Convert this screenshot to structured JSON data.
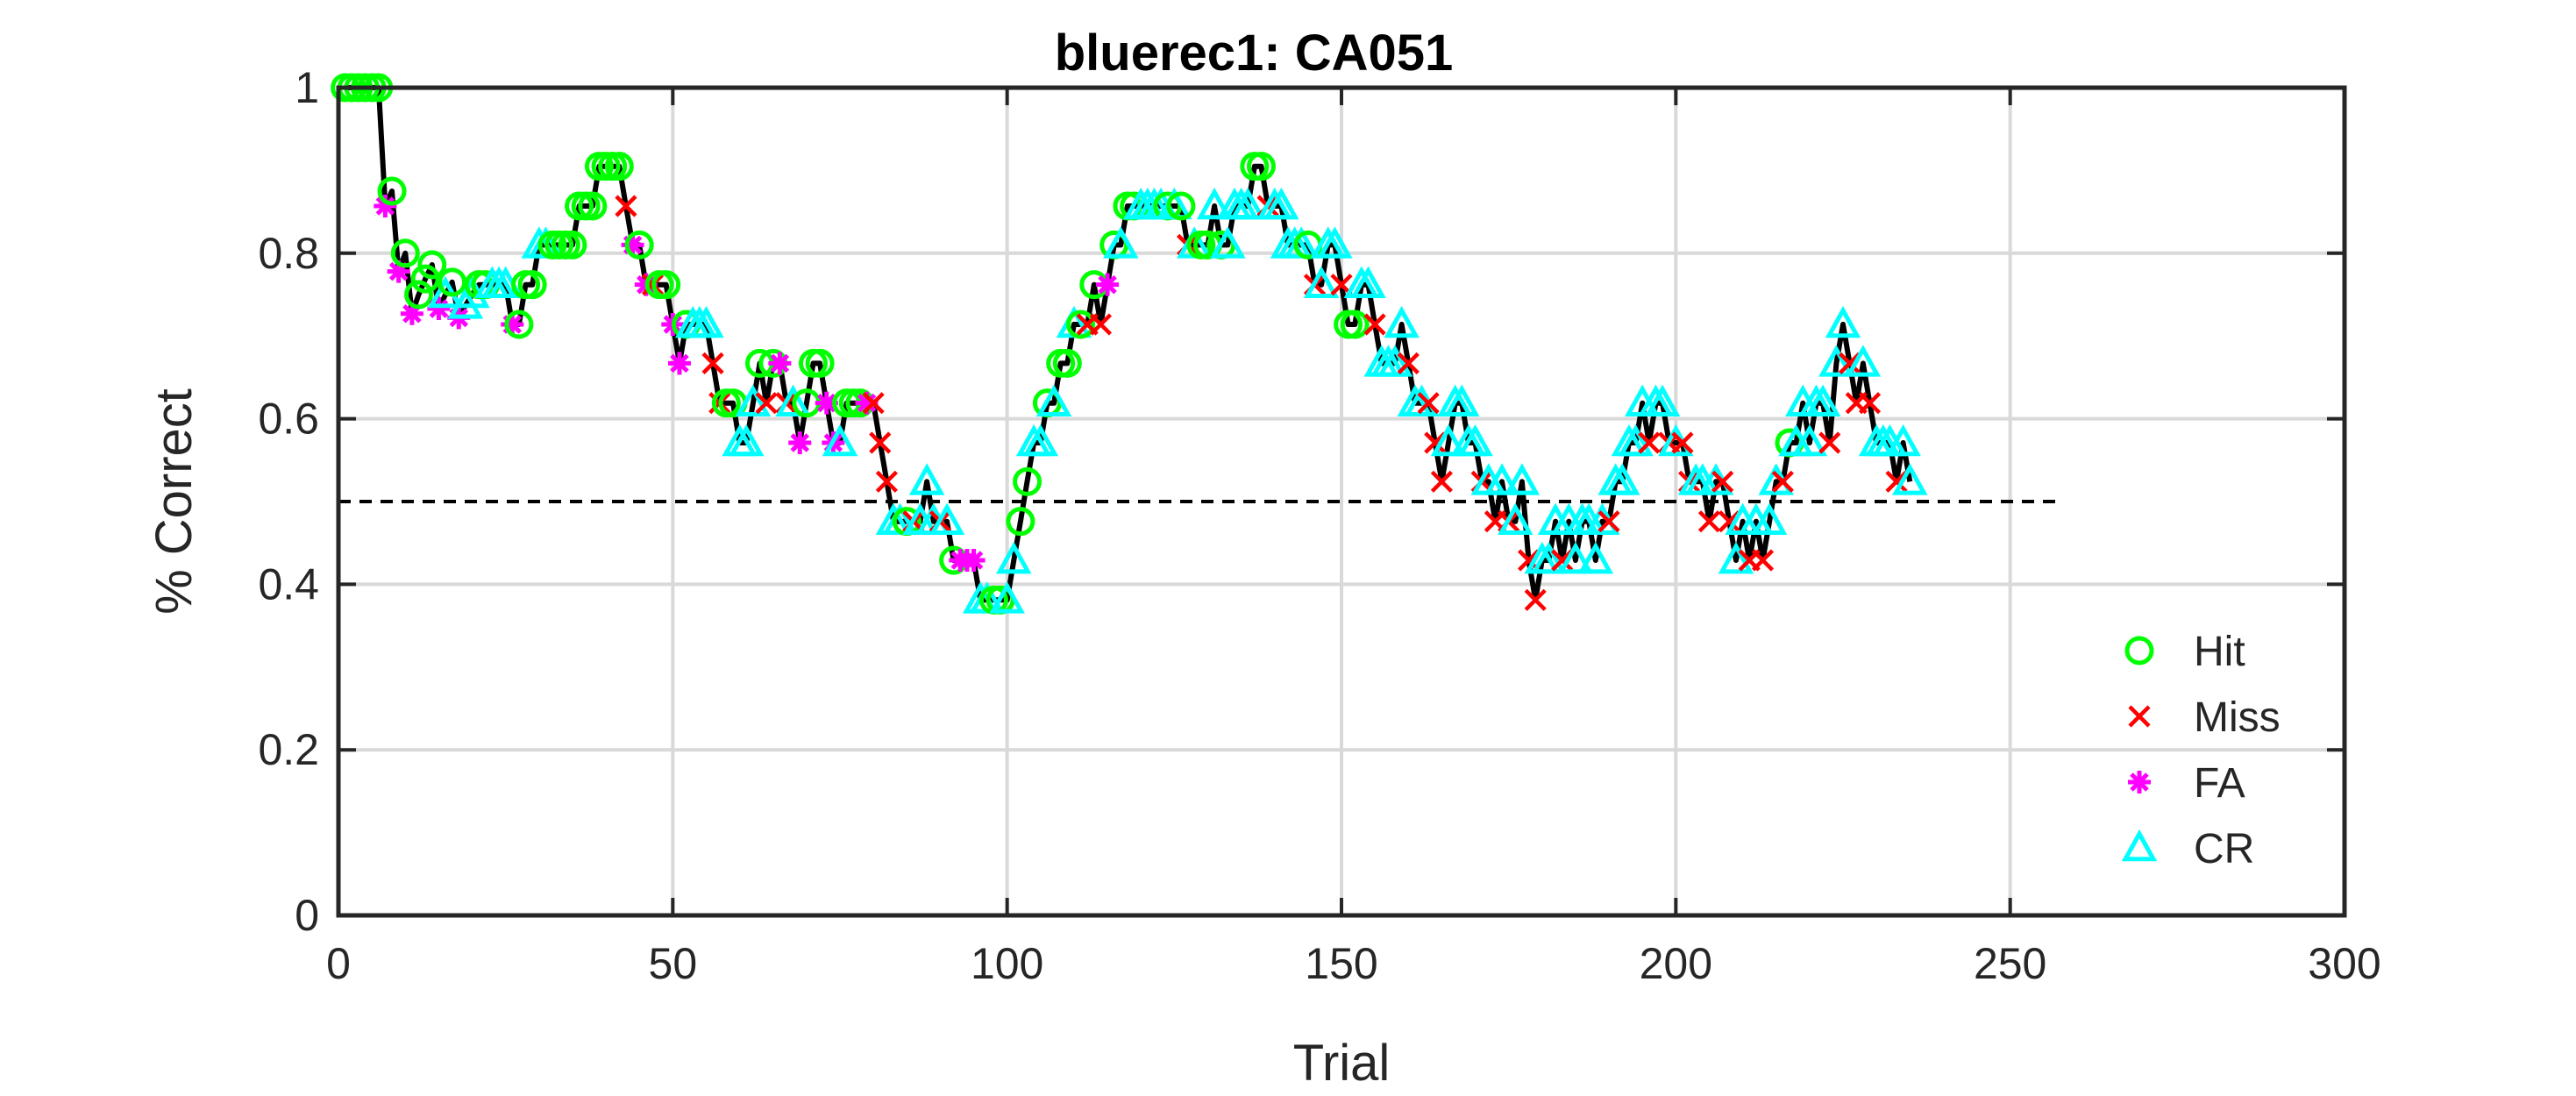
{
  "chart_data": {
    "type": "line",
    "title": "bluerec1: CA051",
    "xlabel": "Trial",
    "ylabel": "% Correct",
    "xlim": [
      0,
      300
    ],
    "ylim": [
      0,
      1
    ],
    "xticks": [
      0,
      50,
      100,
      150,
      200,
      250,
      300
    ],
    "yticks": [
      0,
      0.2,
      0.4,
      0.6,
      0.8,
      1
    ],
    "xtick_labels": [
      "0",
      "50",
      "100",
      "150",
      "200",
      "250",
      "300"
    ],
    "ytick_labels": [
      "0",
      "0.2",
      "0.4",
      "0.6",
      "0.8",
      "1"
    ],
    "grid": true,
    "legend_position": "lower-right",
    "reference_line": {
      "y": 0.5,
      "x_range": [
        0,
        258
      ],
      "style": "dashed",
      "color": "#000000"
    },
    "colors": {
      "line": "#000000",
      "Hit": "#00ff00",
      "Miss": "#ff0000",
      "FA": "#ff00ff",
      "CR": "#00ffff"
    },
    "legend": [
      {
        "label": "Hit",
        "marker": "circle",
        "color": "#00ff00"
      },
      {
        "label": "Miss",
        "marker": "x",
        "color": "#ff0000"
      },
      {
        "label": "FA",
        "marker": "star",
        "color": "#ff00ff"
      },
      {
        "label": "CR",
        "marker": "triangle",
        "color": "#00ffff"
      }
    ],
    "points": [
      [
        1,
        1,
        "Hit"
      ],
      [
        2,
        1,
        "Hit"
      ],
      [
        3,
        1,
        "Hit"
      ],
      [
        4,
        1,
        "Hit"
      ],
      [
        5,
        1,
        "Hit"
      ],
      [
        6,
        1,
        "Hit"
      ],
      [
        7,
        0.857,
        "FA"
      ],
      [
        8,
        0.875,
        "Hit"
      ],
      [
        9,
        0.778,
        "FA"
      ],
      [
        10,
        0.8,
        "Hit"
      ],
      [
        11,
        0.727,
        "FA"
      ],
      [
        12,
        0.75,
        "Hit"
      ],
      [
        13,
        0.769,
        "Hit"
      ],
      [
        14,
        0.786,
        "Hit"
      ],
      [
        15,
        0.733,
        "FA"
      ],
      [
        16,
        0.75,
        "CR"
      ],
      [
        17,
        0.765,
        "Hit"
      ],
      [
        18,
        0.722,
        "FA"
      ],
      [
        19,
        0.737,
        "CR"
      ],
      [
        20,
        0.75,
        "CR"
      ],
      [
        21,
        0.762,
        "Hit"
      ],
      [
        22,
        0.762,
        "Hit"
      ],
      [
        23,
        0.762,
        "CR"
      ],
      [
        24,
        0.762,
        "CR"
      ],
      [
        25,
        0.762,
        "CR"
      ],
      [
        26,
        0.714,
        "FA"
      ],
      [
        27,
        0.714,
        "Hit"
      ],
      [
        28,
        0.762,
        "Hit"
      ],
      [
        29,
        0.762,
        "Hit"
      ],
      [
        30,
        0.81,
        "CR"
      ],
      [
        31,
        0.81,
        "CR"
      ],
      [
        32,
        0.81,
        "Hit"
      ],
      [
        33,
        0.81,
        "Hit"
      ],
      [
        34,
        0.81,
        "Hit"
      ],
      [
        35,
        0.81,
        "Hit"
      ],
      [
        36,
        0.857,
        "Hit"
      ],
      [
        37,
        0.857,
        "Hit"
      ],
      [
        38,
        0.857,
        "Hit"
      ],
      [
        39,
        0.905,
        "Hit"
      ],
      [
        40,
        0.905,
        "Hit"
      ],
      [
        41,
        0.905,
        "Hit"
      ],
      [
        42,
        0.905,
        "Hit"
      ],
      [
        43,
        0.857,
        "Miss"
      ],
      [
        44,
        0.81,
        "FA"
      ],
      [
        45,
        0.81,
        "Hit"
      ],
      [
        46,
        0.762,
        "FA"
      ],
      [
        47,
        0.762,
        "Miss"
      ],
      [
        48,
        0.762,
        "Hit"
      ],
      [
        49,
        0.762,
        "Hit"
      ],
      [
        50,
        0.714,
        "FA"
      ],
      [
        51,
        0.667,
        "FA"
      ],
      [
        52,
        0.714,
        "Hit"
      ],
      [
        53,
        0.714,
        "CR"
      ],
      [
        54,
        0.714,
        "CR"
      ],
      [
        55,
        0.714,
        "CR"
      ],
      [
        56,
        0.667,
        "Miss"
      ],
      [
        57,
        0.619,
        "Miss"
      ],
      [
        58,
        0.619,
        "Hit"
      ],
      [
        59,
        0.619,
        "Hit"
      ],
      [
        60,
        0.571,
        "CR"
      ],
      [
        61,
        0.571,
        "CR"
      ],
      [
        62,
        0.619,
        "CR"
      ],
      [
        63,
        0.667,
        "Hit"
      ],
      [
        64,
        0.619,
        "Miss"
      ],
      [
        65,
        0.667,
        "Hit"
      ],
      [
        66,
        0.667,
        "FA"
      ],
      [
        67,
        0.619,
        "Miss"
      ],
      [
        68,
        0.619,
        "CR"
      ],
      [
        69,
        0.571,
        "FA"
      ],
      [
        70,
        0.619,
        "Hit"
      ],
      [
        71,
        0.667,
        "Hit"
      ],
      [
        72,
        0.667,
        "Hit"
      ],
      [
        73,
        0.619,
        "FA"
      ],
      [
        74,
        0.571,
        "FA"
      ],
      [
        75,
        0.571,
        "CR"
      ],
      [
        76,
        0.619,
        "Hit"
      ],
      [
        77,
        0.619,
        "Hit"
      ],
      [
        78,
        0.619,
        "Hit"
      ],
      [
        79,
        0.619,
        "FA"
      ],
      [
        80,
        0.619,
        "Miss"
      ],
      [
        81,
        0.571,
        "Miss"
      ],
      [
        82,
        0.524,
        "Miss"
      ],
      [
        83,
        0.476,
        "CR"
      ],
      [
        84,
        0.476,
        "CR"
      ],
      [
        85,
        0.476,
        "Hit"
      ],
      [
        86,
        0.476,
        "Miss"
      ],
      [
        87,
        0.476,
        "CR"
      ],
      [
        88,
        0.524,
        "CR"
      ],
      [
        89,
        0.476,
        "CR"
      ],
      [
        90,
        0.476,
        "Miss"
      ],
      [
        91,
        0.476,
        "CR"
      ],
      [
        92,
        0.429,
        "Hit"
      ],
      [
        93,
        0.429,
        "FA"
      ],
      [
        94,
        0.429,
        "FA"
      ],
      [
        95,
        0.429,
        "FA"
      ],
      [
        96,
        0.381,
        "CR"
      ],
      [
        97,
        0.381,
        "CR"
      ],
      [
        98,
        0.381,
        "Hit"
      ],
      [
        99,
        0.381,
        "Hit"
      ],
      [
        100,
        0.381,
        "CR"
      ],
      [
        101,
        0.429,
        "CR"
      ],
      [
        102,
        0.476,
        "Hit"
      ],
      [
        103,
        0.524,
        "Hit"
      ],
      [
        104,
        0.571,
        "CR"
      ],
      [
        105,
        0.571,
        "CR"
      ],
      [
        106,
        0.619,
        "Hit"
      ],
      [
        107,
        0.619,
        "CR"
      ],
      [
        108,
        0.667,
        "Hit"
      ],
      [
        109,
        0.667,
        "Hit"
      ],
      [
        110,
        0.714,
        "CR"
      ],
      [
        111,
        0.714,
        "Hit"
      ],
      [
        112,
        0.714,
        "Miss"
      ],
      [
        113,
        0.762,
        "Hit"
      ],
      [
        114,
        0.714,
        "Miss"
      ],
      [
        115,
        0.762,
        "FA"
      ],
      [
        116,
        0.81,
        "Hit"
      ],
      [
        117,
        0.81,
        "CR"
      ],
      [
        118,
        0.857,
        "Hit"
      ],
      [
        119,
        0.857,
        "Hit"
      ],
      [
        120,
        0.857,
        "CR"
      ],
      [
        121,
        0.857,
        "CR"
      ],
      [
        122,
        0.857,
        "CR"
      ],
      [
        123,
        0.857,
        "CR"
      ],
      [
        124,
        0.857,
        "Hit"
      ],
      [
        125,
        0.857,
        "CR"
      ],
      [
        126,
        0.857,
        "Hit"
      ],
      [
        127,
        0.81,
        "Miss"
      ],
      [
        128,
        0.81,
        "CR"
      ],
      [
        129,
        0.81,
        "Hit"
      ],
      [
        130,
        0.81,
        "Hit"
      ],
      [
        131,
        0.857,
        "CR"
      ],
      [
        132,
        0.81,
        "Hit"
      ],
      [
        133,
        0.81,
        "CR"
      ],
      [
        134,
        0.857,
        "CR"
      ],
      [
        135,
        0.857,
        "CR"
      ],
      [
        136,
        0.857,
        "CR"
      ],
      [
        137,
        0.905,
        "Hit"
      ],
      [
        138,
        0.905,
        "Hit"
      ],
      [
        139,
        0.857,
        "Miss"
      ],
      [
        140,
        0.857,
        "CR"
      ],
      [
        141,
        0.857,
        "CR"
      ],
      [
        142,
        0.81,
        "CR"
      ],
      [
        143,
        0.81,
        "CR"
      ],
      [
        144,
        0.81,
        "CR"
      ],
      [
        145,
        0.81,
        "Hit"
      ],
      [
        146,
        0.762,
        "Miss"
      ],
      [
        147,
        0.762,
        "CR"
      ],
      [
        148,
        0.81,
        "CR"
      ],
      [
        149,
        0.81,
        "CR"
      ],
      [
        150,
        0.762,
        "Miss"
      ],
      [
        151,
        0.714,
        "Hit"
      ],
      [
        152,
        0.714,
        "Hit"
      ],
      [
        153,
        0.762,
        "CR"
      ],
      [
        154,
        0.762,
        "CR"
      ],
      [
        155,
        0.714,
        "Miss"
      ],
      [
        156,
        0.667,
        "CR"
      ],
      [
        157,
        0.667,
        "CR"
      ],
      [
        158,
        0.667,
        "CR"
      ],
      [
        159,
        0.714,
        "CR"
      ],
      [
        160,
        0.667,
        "Miss"
      ],
      [
        161,
        0.619,
        "CR"
      ],
      [
        162,
        0.619,
        "CR"
      ],
      [
        163,
        0.619,
        "Miss"
      ],
      [
        164,
        0.571,
        "Miss"
      ],
      [
        165,
        0.524,
        "Miss"
      ],
      [
        166,
        0.571,
        "CR"
      ],
      [
        167,
        0.619,
        "CR"
      ],
      [
        168,
        0.619,
        "CR"
      ],
      [
        169,
        0.571,
        "CR"
      ],
      [
        170,
        0.571,
        "CR"
      ],
      [
        171,
        0.524,
        "Miss"
      ],
      [
        172,
        0.524,
        "CR"
      ],
      [
        173,
        0.476,
        "Miss"
      ],
      [
        174,
        0.524,
        "CR"
      ],
      [
        175,
        0.476,
        "Miss"
      ],
      [
        176,
        0.476,
        "CR"
      ],
      [
        177,
        0.524,
        "CR"
      ],
      [
        178,
        0.429,
        "Miss"
      ],
      [
        179,
        0.381,
        "Miss"
      ],
      [
        180,
        0.429,
        "CR"
      ],
      [
        181,
        0.429,
        "CR"
      ],
      [
        182,
        0.476,
        "CR"
      ],
      [
        183,
        0.429,
        "Miss"
      ],
      [
        184,
        0.476,
        "CR"
      ],
      [
        185,
        0.429,
        "CR"
      ],
      [
        186,
        0.476,
        "CR"
      ],
      [
        187,
        0.476,
        "CR"
      ],
      [
        188,
        0.429,
        "CR"
      ],
      [
        189,
        0.476,
        "CR"
      ],
      [
        190,
        0.476,
        "Miss"
      ],
      [
        191,
        0.524,
        "CR"
      ],
      [
        192,
        0.524,
        "CR"
      ],
      [
        193,
        0.571,
        "CR"
      ],
      [
        194,
        0.571,
        "CR"
      ],
      [
        195,
        0.619,
        "CR"
      ],
      [
        196,
        0.571,
        "Miss"
      ],
      [
        197,
        0.619,
        "CR"
      ],
      [
        198,
        0.619,
        "CR"
      ],
      [
        199,
        0.571,
        "Miss"
      ],
      [
        200,
        0.571,
        "CR"
      ],
      [
        201,
        0.571,
        "Miss"
      ],
      [
        202,
        0.524,
        "Miss"
      ],
      [
        203,
        0.524,
        "CR"
      ],
      [
        204,
        0.524,
        "CR"
      ],
      [
        205,
        0.476,
        "Miss"
      ],
      [
        206,
        0.524,
        "CR"
      ],
      [
        207,
        0.524,
        "Miss"
      ],
      [
        208,
        0.476,
        "Miss"
      ],
      [
        209,
        0.429,
        "CR"
      ],
      [
        210,
        0.476,
        "CR"
      ],
      [
        211,
        0.429,
        "Miss"
      ],
      [
        212,
        0.476,
        "CR"
      ],
      [
        213,
        0.429,
        "Miss"
      ],
      [
        214,
        0.476,
        "CR"
      ],
      [
        215,
        0.524,
        "CR"
      ],
      [
        216,
        0.524,
        "Miss"
      ],
      [
        217,
        0.571,
        "Hit"
      ],
      [
        218,
        0.571,
        "CR"
      ],
      [
        219,
        0.619,
        "CR"
      ],
      [
        220,
        0.571,
        "CR"
      ],
      [
        221,
        0.619,
        "CR"
      ],
      [
        222,
        0.619,
        "CR"
      ],
      [
        223,
        0.571,
        "Miss"
      ],
      [
        224,
        0.667,
        "CR"
      ],
      [
        225,
        0.714,
        "CR"
      ],
      [
        226,
        0.667,
        "Miss"
      ],
      [
        227,
        0.619,
        "Miss"
      ],
      [
        228,
        0.667,
        "CR"
      ],
      [
        229,
        0.619,
        "Miss"
      ],
      [
        230,
        0.571,
        "CR"
      ],
      [
        231,
        0.571,
        "CR"
      ],
      [
        232,
        0.571,
        "CR"
      ],
      [
        233,
        0.524,
        "Miss"
      ],
      [
        234,
        0.571,
        "CR"
      ],
      [
        235,
        0.524,
        "CR"
      ]
    ]
  }
}
